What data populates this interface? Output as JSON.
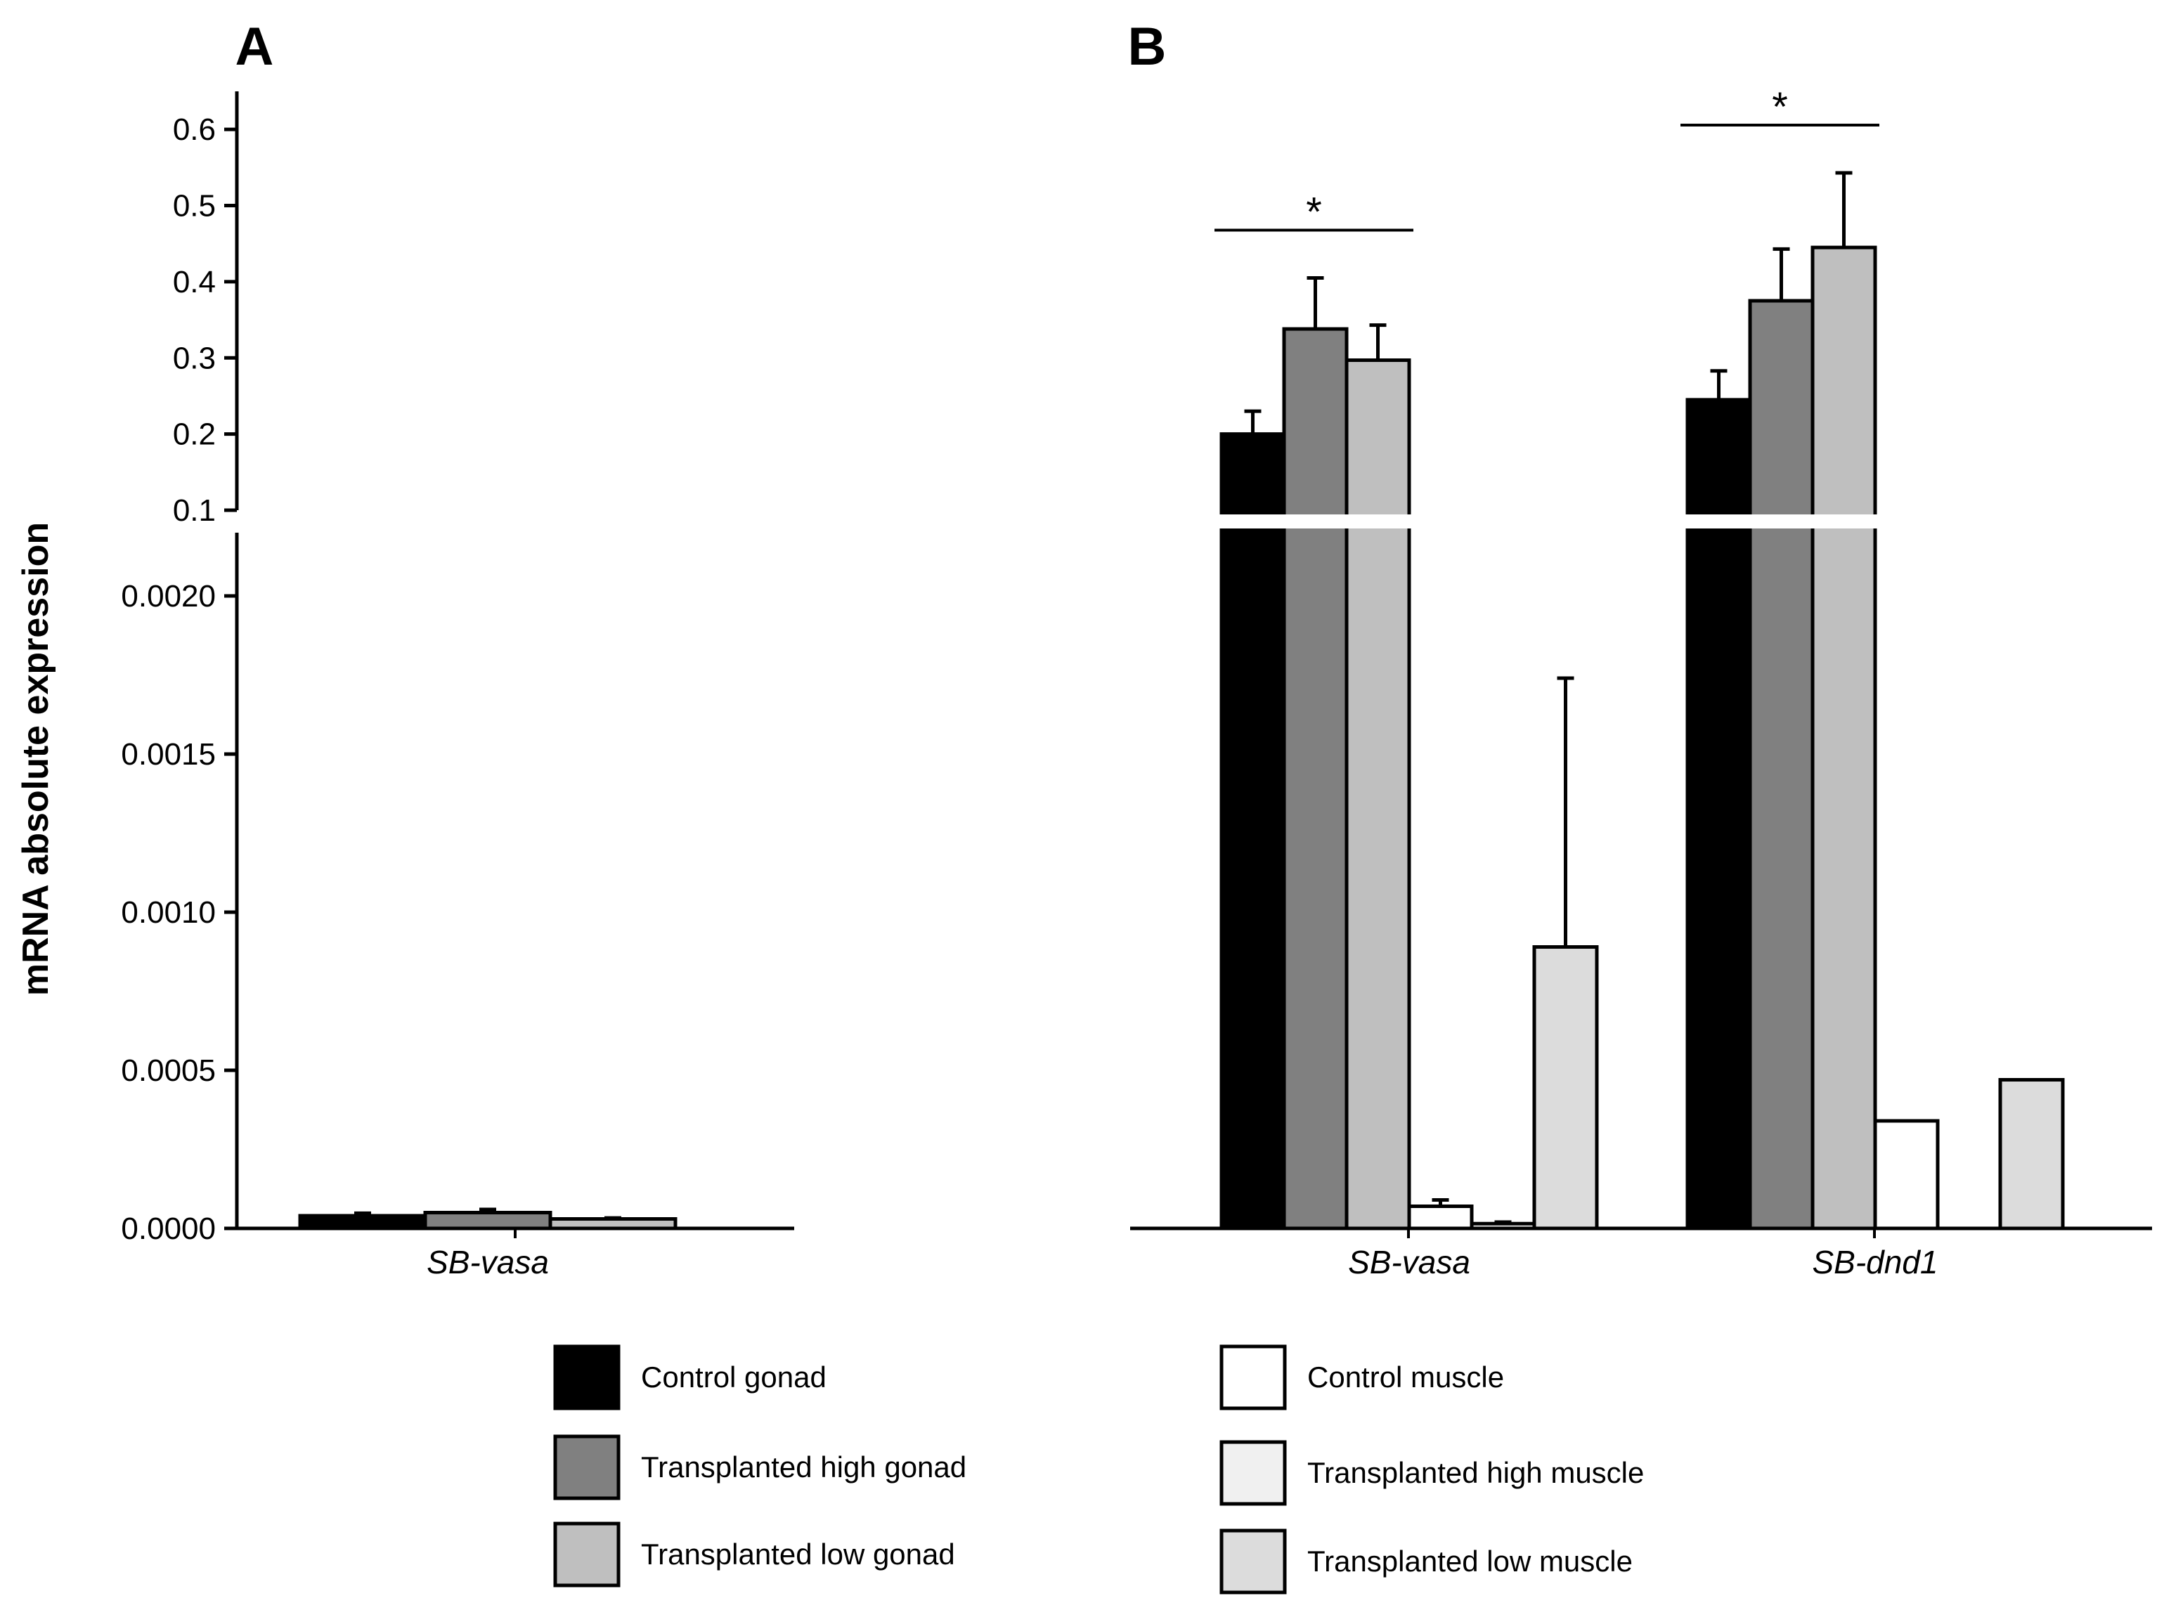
{
  "chart_data": {
    "type": "bar",
    "ylabel": "mRNA absolute expression",
    "y_axis": {
      "broken": true,
      "lower_range": [
        0,
        0.0022
      ],
      "lower_ticks": [
        {
          "value": 0.0,
          "label": "0.0000"
        },
        {
          "value": 0.0005,
          "label": "0.0005"
        },
        {
          "value": 0.001,
          "label": "0.0010"
        },
        {
          "value": 0.0015,
          "label": "0.0015"
        },
        {
          "value": 0.002,
          "label": "0.0020"
        }
      ],
      "upper_range": [
        0.1,
        0.65
      ],
      "upper_ticks": [
        {
          "value": 0.1,
          "label": "0.1"
        },
        {
          "value": 0.2,
          "label": "0.2"
        },
        {
          "value": 0.3,
          "label": "0.3"
        },
        {
          "value": 0.4,
          "label": "0.4"
        },
        {
          "value": 0.5,
          "label": "0.5"
        },
        {
          "value": 0.6,
          "label": "0.6"
        }
      ]
    },
    "legend": {
      "placement": "bottom",
      "entries": [
        {
          "series": "Control gonad",
          "label": "Control gonad",
          "color": "#000000"
        },
        {
          "series": "Transplanted high gonad",
          "label": "Transplanted high gonad",
          "color": "#808080"
        },
        {
          "series": "Transplanted low gonad",
          "label": "Transplanted low gonad",
          "color": "#bfbfbf"
        },
        {
          "series": "Control muscle",
          "label": "Control muscle",
          "color": "#ffffff"
        },
        {
          "series": "Transplanted high muscle",
          "label": "Transplanted high muscle",
          "color": "#f0f0f0"
        },
        {
          "series": "Transplanted low muscle",
          "label": "Transplanted low muscle",
          "color": "#dcdcdc"
        }
      ]
    },
    "panels": [
      {
        "label": "A",
        "categories": [
          "SB-vasa"
        ],
        "series": [
          {
            "name": "Control gonad",
            "values": [
              4e-05
            ],
            "errors": [
              8e-06
            ]
          },
          {
            "name": "Transplanted high gonad",
            "values": [
              5e-05
            ],
            "errors": [
              1e-05
            ]
          },
          {
            "name": "Transplanted low gonad",
            "values": [
              3e-05
            ],
            "errors": [
              3e-06
            ]
          }
        ]
      },
      {
        "label": "B",
        "categories": [
          "SB-vasa",
          "SB-dnd1"
        ],
        "series": [
          {
            "name": "Control gonad",
            "values": [
              0.2,
              0.245
            ],
            "errors": [
              0.03,
              0.038
            ]
          },
          {
            "name": "Transplanted high gonad",
            "values": [
              0.338,
              0.375
            ],
            "errors": [
              0.067,
              0.068
            ]
          },
          {
            "name": "Transplanted low gonad",
            "values": [
              0.297,
              0.445
            ],
            "errors": [
              0.046,
              0.098
            ]
          },
          {
            "name": "Control muscle",
            "values": [
              7e-05,
              0.00034
            ],
            "errors": [
              2e-05,
              0
            ]
          },
          {
            "name": "Transplanted high muscle",
            "values": [
              1.5e-05,
              null
            ],
            "errors": [
              5e-06,
              0
            ]
          },
          {
            "name": "Transplanted low muscle",
            "values": [
              0.00089,
              0.00047
            ],
            "errors": [
              0.00085,
              0
            ]
          }
        ],
        "annotations": [
          {
            "category": "SB-vasa",
            "text": "*",
            "spans": "gonad bars"
          },
          {
            "category": "SB-dnd1",
            "text": "*",
            "spans": "gonad bars"
          }
        ]
      }
    ]
  }
}
